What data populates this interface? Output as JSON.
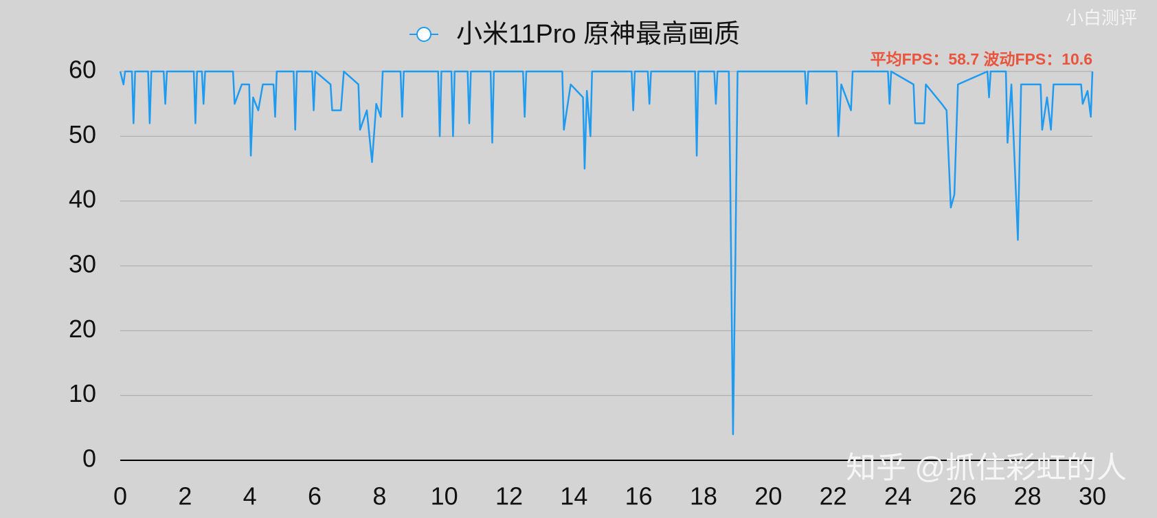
{
  "chart_data": {
    "type": "line",
    "annotations": [
      "平均FPS：58.7  波动FPS：10.6",
      "小白测评",
      "知乎 @抓住彩虹的人"
    ],
    "x": [
      0,
      0.1,
      0.15,
      0.36,
      0.41,
      0.46,
      0.86,
      0.91,
      0.96,
      1.34,
      1.39,
      1.44,
      2.27,
      2.32,
      2.37,
      2.52,
      2.57,
      2.62,
      3.48,
      3.53,
      3.75,
      3.98,
      4.03,
      4.1,
      4.26,
      4.4,
      4.73,
      4.78,
      4.83,
      5.35,
      5.4,
      5.45,
      5.92,
      5.97,
      6.02,
      6.49,
      6.54,
      6.81,
      6.9,
      7.35,
      7.4,
      7.61,
      7.77,
      7.9,
      8.04,
      8.1,
      8.65,
      8.7,
      8.75,
      9.81,
      9.86,
      9.91,
      10.22,
      10.27,
      10.32,
      10.72,
      10.77,
      10.82,
      11.43,
      11.48,
      11.53,
      12.43,
      12.48,
      12.53,
      13.64,
      13.69,
      13.9,
      14.28,
      14.33,
      14.4,
      14.51,
      14.56,
      15.78,
      15.83,
      15.88,
      16.28,
      16.33,
      16.38,
      17.74,
      17.79,
      17.84,
      18.33,
      18.38,
      18.43,
      18.78,
      18.82,
      18.91,
      18.98,
      19.05,
      21.13,
      21.18,
      21.23,
      22.11,
      22.16,
      22.25,
      22.55,
      22.6,
      23.69,
      23.74,
      23.79,
      24.48,
      24.53,
      24.81,
      24.86,
      25.35,
      25.5,
      25.63,
      25.74,
      25.85,
      26.76,
      26.81,
      26.86,
      27.33,
      27.38,
      27.5,
      27.7,
      27.8,
      28.4,
      28.45,
      28.6,
      28.72,
      28.8,
      29.65,
      29.7,
      29.85,
      29.95,
      30
    ],
    "series": [
      {
        "name": "小米11Pro  原神最高画质",
        "color": "#1e9bf0",
        "values": [
          60,
          58,
          60,
          60,
          52,
          60,
          60,
          52,
          60,
          60,
          55,
          60,
          60,
          52,
          60,
          60,
          55,
          60,
          60,
          55,
          58,
          58,
          47,
          56,
          54,
          58,
          58,
          53,
          60,
          60,
          51,
          60,
          60,
          54,
          60,
          58,
          54,
          54,
          60,
          58,
          51,
          54,
          46,
          55,
          53,
          60,
          60,
          53,
          60,
          60,
          50,
          60,
          60,
          50,
          60,
          60,
          52,
          60,
          60,
          49,
          60,
          60,
          53,
          60,
          60,
          51,
          58,
          56,
          45,
          57,
          50,
          60,
          60,
          54,
          60,
          60,
          55,
          60,
          60,
          47,
          60,
          60,
          55,
          60,
          60,
          45,
          4,
          30,
          60,
          60,
          55,
          60,
          60,
          50,
          58,
          54,
          60,
          60,
          55,
          60,
          58,
          52,
          52,
          58,
          55,
          54,
          39,
          41,
          58,
          60,
          56,
          60,
          60,
          49,
          58,
          34,
          58,
          58,
          51,
          56,
          51,
          58,
          58,
          55,
          57,
          53,
          60
        ]
      }
    ],
    "xlim": [
      0,
      30
    ],
    "xticks": [
      0,
      2,
      4,
      6,
      8,
      10,
      12,
      14,
      16,
      18,
      20,
      22,
      24,
      26,
      28,
      30
    ],
    "ylim": [
      0,
      60
    ],
    "yticks": [
      0,
      10,
      20,
      30,
      40,
      50,
      60
    ],
    "grid": true
  }
}
